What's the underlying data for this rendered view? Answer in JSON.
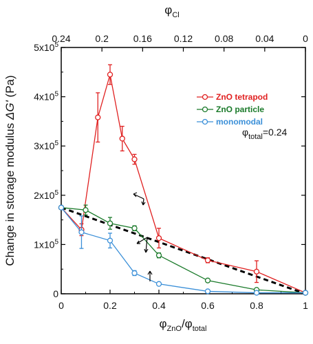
{
  "chart_data": {
    "type": "line",
    "x_axis_bottom": {
      "label_main": "φ",
      "label_sub": "ZnO",
      "label_sep": "/φ",
      "label_sub2": "total",
      "range": [
        0,
        1
      ],
      "ticks": [
        0,
        0.2,
        0.4,
        0.6,
        0.8,
        1
      ],
      "tick_labels": [
        "0",
        "0.2",
        "0.4",
        "0.6",
        "0.8",
        "1"
      ]
    },
    "x_axis_top": {
      "label_main": "φ",
      "label_sub": "Cl",
      "range": [
        0.24,
        0
      ],
      "ticks": [
        0.24,
        0.2,
        0.16,
        0.12,
        0.08,
        0.04,
        0
      ],
      "tick_labels": [
        "0.24",
        "0.2",
        "0.16",
        "0.12",
        "0.08",
        "0.04",
        "0"
      ]
    },
    "y_axis": {
      "label_main": "Change in storage modulus ",
      "label_delta": "ΔG'",
      "label_unit": " (Pa)",
      "range": [
        0,
        500000
      ],
      "ticks": [
        0,
        100000,
        200000,
        300000,
        400000,
        500000
      ],
      "tick_labels": [
        "0",
        "1x10",
        "2x10",
        "3x10",
        "4x10",
        "5x10"
      ],
      "tick_exponent": "5"
    },
    "series": [
      {
        "name": "ZnO tetrapod",
        "color": "#e02020",
        "x": [
          0,
          0.083,
          0.15,
          0.2,
          0.25,
          0.3,
          0.4,
          0.6,
          0.8,
          1.0
        ],
        "y": [
          175000,
          130000,
          358000,
          445000,
          315000,
          273000,
          113000,
          68000,
          45000,
          2000
        ],
        "err": [
          0,
          12000,
          50000,
          20000,
          25000,
          10000,
          20000,
          5000,
          22000,
          0
        ]
      },
      {
        "name": "ZnO particle",
        "color": "#1a7a2a",
        "x": [
          0,
          0.1,
          0.2,
          0.3,
          0.4,
          0.6,
          0.8,
          1.0
        ],
        "y": [
          175000,
          170000,
          143000,
          133000,
          78000,
          27000,
          8000,
          2000
        ],
        "err": [
          0,
          10000,
          12000,
          5000,
          5000,
          3000,
          2000,
          0
        ]
      },
      {
        "name": "monomodal",
        "color": "#3a8fd8",
        "x": [
          0,
          0.083,
          0.2,
          0.3,
          0.4,
          0.6,
          0.8,
          1.0
        ],
        "y": [
          175000,
          125000,
          108000,
          42000,
          20000,
          5000,
          2000,
          2000
        ],
        "err": [
          0,
          33000,
          15000,
          5000,
          3000,
          2000,
          1000,
          0
        ]
      }
    ],
    "reference_line": {
      "x": [
        0,
        1
      ],
      "y": [
        175000,
        0
      ],
      "style": "dashed"
    },
    "annotation": {
      "main": "φ",
      "sub": "total",
      "value": "=0.24"
    },
    "legend_position": "top-right",
    "grid": false
  }
}
